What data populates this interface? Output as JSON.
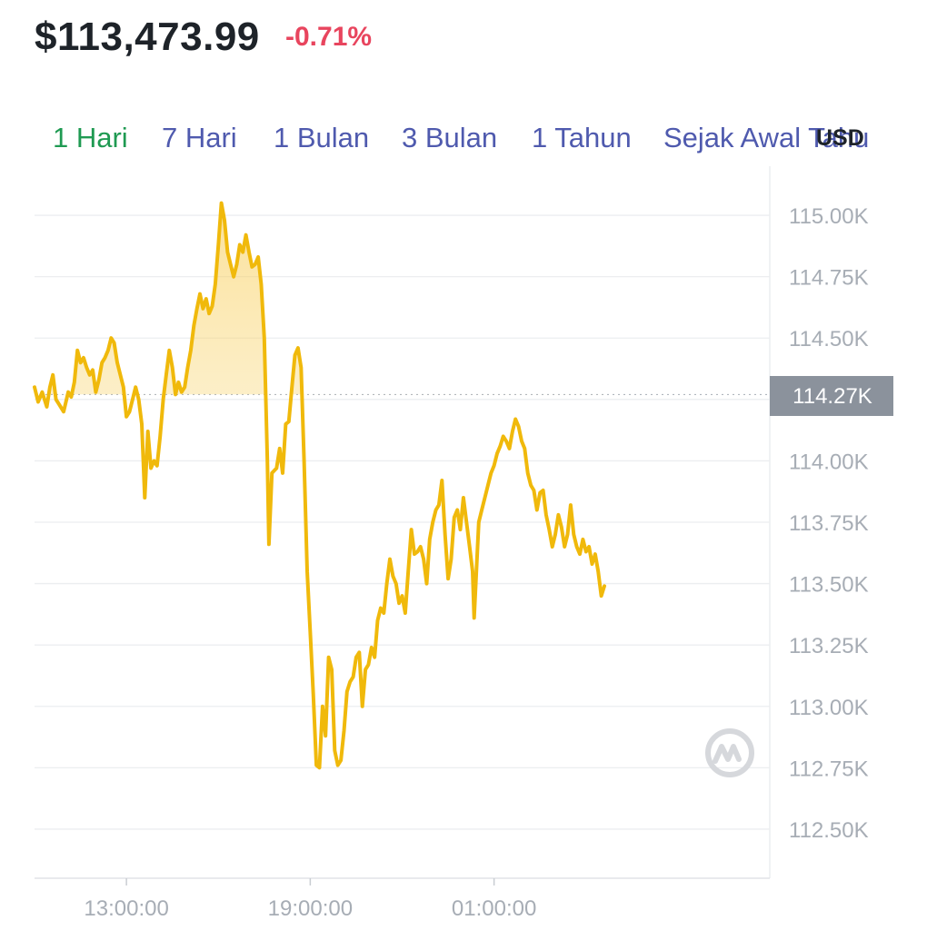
{
  "header": {
    "price": "$113,473.99",
    "change": "-0.71%"
  },
  "tabs": [
    {
      "label": "1 Hari",
      "active": true
    },
    {
      "label": "7 Hari",
      "active": false
    },
    {
      "label": "1 Bulan",
      "active": false
    },
    {
      "label": "3 Bulan",
      "active": false
    },
    {
      "label": "1 Tahun",
      "active": false
    },
    {
      "label": "Sejak Awal Tahu",
      "active": false
    }
  ],
  "currency": "USD",
  "colors": {
    "line": "#f0b90b",
    "negative": "#e8455e",
    "active_tab": "#1f9a52",
    "tab": "#4f5aae",
    "current_badge": "#8b929c"
  },
  "chart_data": {
    "type": "area",
    "title": "",
    "xlabel": "",
    "ylabel": "",
    "x_ticks": [
      "13:00:00",
      "19:00:00",
      "01:00:00"
    ],
    "x_tick_hours": [
      3,
      9,
      15
    ],
    "y_ticks": [
      115.0,
      114.75,
      114.5,
      114.25,
      114.0,
      113.75,
      113.5,
      113.25,
      113.0,
      112.75,
      112.5
    ],
    "y_tick_labels": [
      "115.00K",
      "114.75K",
      "114.50K",
      "114.25K",
      "114.00K",
      "113.75K",
      "113.50K",
      "113.25K",
      "113.00K",
      "112.75K",
      "112.50K"
    ],
    "ylim": [
      112.3,
      115.2
    ],
    "xlim_hours": [
      0,
      24
    ],
    "reference_value": 114.27,
    "reference_label": "114.27K",
    "fill": "above-reference",
    "grid": true,
    "series": [
      {
        "values": [
          [
            0.0,
            114.3
          ],
          [
            0.12,
            114.24
          ],
          [
            0.25,
            114.28
          ],
          [
            0.4,
            114.22
          ],
          [
            0.5,
            114.3
          ],
          [
            0.6,
            114.35
          ],
          [
            0.7,
            114.25
          ],
          [
            0.8,
            114.23
          ],
          [
            0.95,
            114.2
          ],
          [
            1.1,
            114.28
          ],
          [
            1.2,
            114.26
          ],
          [
            1.3,
            114.32
          ],
          [
            1.4,
            114.45
          ],
          [
            1.5,
            114.4
          ],
          [
            1.6,
            114.42
          ],
          [
            1.7,
            114.38
          ],
          [
            1.8,
            114.35
          ],
          [
            1.9,
            114.37
          ],
          [
            2.0,
            114.28
          ],
          [
            2.1,
            114.33
          ],
          [
            2.2,
            114.4
          ],
          [
            2.3,
            114.42
          ],
          [
            2.4,
            114.45
          ],
          [
            2.5,
            114.5
          ],
          [
            2.6,
            114.48
          ],
          [
            2.7,
            114.4
          ],
          [
            2.8,
            114.35
          ],
          [
            2.9,
            114.3
          ],
          [
            3.0,
            114.18
          ],
          [
            3.1,
            114.2
          ],
          [
            3.2,
            114.25
          ],
          [
            3.3,
            114.3
          ],
          [
            3.4,
            114.25
          ],
          [
            3.5,
            114.15
          ],
          [
            3.6,
            113.85
          ],
          [
            3.7,
            114.12
          ],
          [
            3.8,
            113.97
          ],
          [
            3.9,
            114.0
          ],
          [
            4.0,
            113.98
          ],
          [
            4.1,
            114.1
          ],
          [
            4.2,
            114.25
          ],
          [
            4.3,
            114.35
          ],
          [
            4.4,
            114.45
          ],
          [
            4.5,
            114.38
          ],
          [
            4.6,
            114.27
          ],
          [
            4.7,
            114.32
          ],
          [
            4.8,
            114.28
          ],
          [
            4.9,
            114.3
          ],
          [
            5.0,
            114.38
          ],
          [
            5.1,
            114.45
          ],
          [
            5.2,
            114.55
          ],
          [
            5.3,
            114.62
          ],
          [
            5.4,
            114.68
          ],
          [
            5.5,
            114.62
          ],
          [
            5.6,
            114.66
          ],
          [
            5.7,
            114.6
          ],
          [
            5.8,
            114.63
          ],
          [
            5.9,
            114.72
          ],
          [
            6.0,
            114.88
          ],
          [
            6.1,
            115.05
          ],
          [
            6.2,
            114.98
          ],
          [
            6.3,
            114.85
          ],
          [
            6.4,
            114.8
          ],
          [
            6.5,
            114.75
          ],
          [
            6.6,
            114.8
          ],
          [
            6.7,
            114.88
          ],
          [
            6.8,
            114.85
          ],
          [
            6.9,
            114.92
          ],
          [
            7.0,
            114.85
          ],
          [
            7.1,
            114.79
          ],
          [
            7.2,
            114.8
          ],
          [
            7.3,
            114.83
          ],
          [
            7.4,
            114.72
          ],
          [
            7.5,
            114.5
          ],
          [
            7.6,
            114.0
          ],
          [
            7.65,
            113.66
          ],
          [
            7.75,
            113.95
          ],
          [
            7.9,
            113.97
          ],
          [
            8.0,
            114.05
          ],
          [
            8.1,
            113.95
          ],
          [
            8.2,
            114.15
          ],
          [
            8.3,
            114.16
          ],
          [
            8.4,
            114.3
          ],
          [
            8.5,
            114.43
          ],
          [
            8.6,
            114.46
          ],
          [
            8.7,
            114.38
          ],
          [
            8.8,
            114.0
          ],
          [
            8.9,
            113.55
          ],
          [
            9.0,
            113.3
          ],
          [
            9.1,
            113.05
          ],
          [
            9.2,
            112.76
          ],
          [
            9.3,
            112.75
          ],
          [
            9.4,
            113.0
          ],
          [
            9.5,
            112.88
          ],
          [
            9.6,
            113.2
          ],
          [
            9.7,
            113.15
          ],
          [
            9.8,
            112.82
          ],
          [
            9.9,
            112.76
          ],
          [
            10.0,
            112.78
          ],
          [
            10.1,
            112.9
          ],
          [
            10.2,
            113.06
          ],
          [
            10.3,
            113.1
          ],
          [
            10.4,
            113.12
          ],
          [
            10.5,
            113.2
          ],
          [
            10.6,
            113.22
          ],
          [
            10.7,
            113.0
          ],
          [
            10.8,
            113.15
          ],
          [
            10.9,
            113.17
          ],
          [
            11.0,
            113.24
          ],
          [
            11.1,
            113.2
          ],
          [
            11.2,
            113.35
          ],
          [
            11.3,
            113.4
          ],
          [
            11.4,
            113.38
          ],
          [
            11.5,
            113.5
          ],
          [
            11.6,
            113.6
          ],
          [
            11.7,
            113.53
          ],
          [
            11.8,
            113.5
          ],
          [
            11.9,
            113.42
          ],
          [
            12.0,
            113.45
          ],
          [
            12.1,
            113.38
          ],
          [
            12.2,
            113.55
          ],
          [
            12.3,
            113.72
          ],
          [
            12.4,
            113.62
          ],
          [
            12.5,
            113.63
          ],
          [
            12.6,
            113.65
          ],
          [
            12.7,
            113.6
          ],
          [
            12.8,
            113.5
          ],
          [
            12.9,
            113.68
          ],
          [
            13.0,
            113.75
          ],
          [
            13.1,
            113.8
          ],
          [
            13.2,
            113.82
          ],
          [
            13.3,
            113.92
          ],
          [
            13.4,
            113.7
          ],
          [
            13.5,
            113.52
          ],
          [
            13.6,
            113.6
          ],
          [
            13.7,
            113.77
          ],
          [
            13.8,
            113.8
          ],
          [
            13.9,
            113.72
          ],
          [
            14.0,
            113.85
          ],
          [
            14.1,
            113.75
          ],
          [
            14.2,
            113.65
          ],
          [
            14.3,
            113.55
          ],
          [
            14.35,
            113.36
          ],
          [
            14.5,
            113.75
          ],
          [
            14.6,
            113.8
          ],
          [
            14.7,
            113.85
          ],
          [
            14.8,
            113.9
          ],
          [
            14.9,
            113.95
          ],
          [
            15.0,
            113.98
          ],
          [
            15.1,
            114.03
          ],
          [
            15.2,
            114.06
          ],
          [
            15.3,
            114.1
          ],
          [
            15.4,
            114.08
          ],
          [
            15.5,
            114.05
          ],
          [
            15.6,
            114.12
          ],
          [
            15.7,
            114.17
          ],
          [
            15.8,
            114.14
          ],
          [
            15.9,
            114.08
          ],
          [
            16.0,
            114.05
          ],
          [
            16.1,
            113.95
          ],
          [
            16.2,
            113.9
          ],
          [
            16.3,
            113.88
          ],
          [
            16.4,
            113.8
          ],
          [
            16.5,
            113.87
          ],
          [
            16.6,
            113.88
          ],
          [
            16.7,
            113.78
          ],
          [
            16.8,
            113.72
          ],
          [
            16.9,
            113.65
          ],
          [
            17.0,
            113.7
          ],
          [
            17.1,
            113.78
          ],
          [
            17.2,
            113.73
          ],
          [
            17.3,
            113.65
          ],
          [
            17.4,
            113.7
          ],
          [
            17.5,
            113.82
          ],
          [
            17.6,
            113.7
          ],
          [
            17.7,
            113.65
          ],
          [
            17.8,
            113.62
          ],
          [
            17.9,
            113.68
          ],
          [
            18.0,
            113.63
          ],
          [
            18.1,
            113.65
          ],
          [
            18.2,
            113.58
          ],
          [
            18.3,
            113.62
          ],
          [
            18.4,
            113.55
          ],
          [
            18.5,
            113.45
          ],
          [
            18.6,
            113.49
          ]
        ]
      }
    ]
  }
}
